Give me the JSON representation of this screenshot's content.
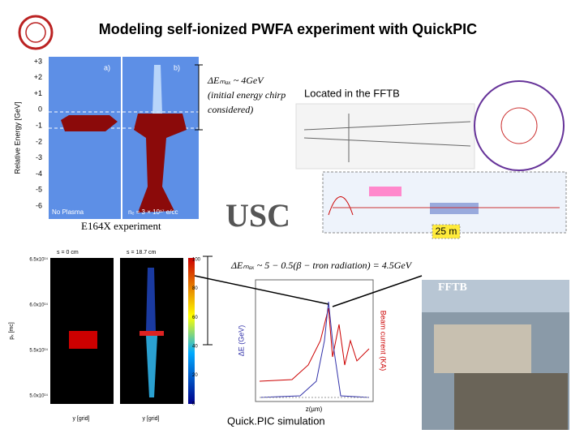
{
  "title": "Modeling self-ionized PWFA experiment with QuickPIC",
  "top_left_plot": {
    "y_axis_label": "Relative Energy [GeV]",
    "yticks": [
      "+3",
      "+2",
      "+1",
      "0",
      "-1",
      "-2",
      "-3",
      "-4",
      "-5",
      "-6"
    ],
    "panel_labels": [
      "a)",
      "b)"
    ],
    "captions": [
      "No Plasma",
      "nₑ = 3 × 10¹⁷ e/cc"
    ]
  },
  "energy_gain_note": [
    "ΔEₘₐₓ ~ 4GeV",
    "(initial energy chirp",
    "considered)"
  ],
  "location": "Located in the FFTB",
  "experiment_label": "E164X experiment",
  "logo": "USC",
  "distance": "25 m",
  "photo_label": "FFTB",
  "bottom_left_plot": {
    "panel_titles": [
      "s = 0 cm",
      "s = 18.7 cm"
    ],
    "y_axis_label": "pₓ [mc]",
    "yticks": [
      "6.5x10¹⁴",
      "6.0x10¹⁴",
      "5.5x10¹⁴",
      "5.0x10¹⁴"
    ],
    "x_axis_labels": [
      "y [grid]",
      "y [grid]"
    ],
    "colorbar_ticks": [
      "100",
      "80",
      "60",
      "40",
      "20",
      "0"
    ]
  },
  "simulation_note": "ΔEₘₐₓ ~ 5 − 0.5(β − tron radiation) = 4.5GeV",
  "simulation_plot": {
    "y_axis_label": "ΔE (GeV)",
    "y2_axis_label": "Beam current (KA)",
    "x_axis_label": "z(µm)"
  },
  "simulation_label": "Quick.PIC simulation"
}
